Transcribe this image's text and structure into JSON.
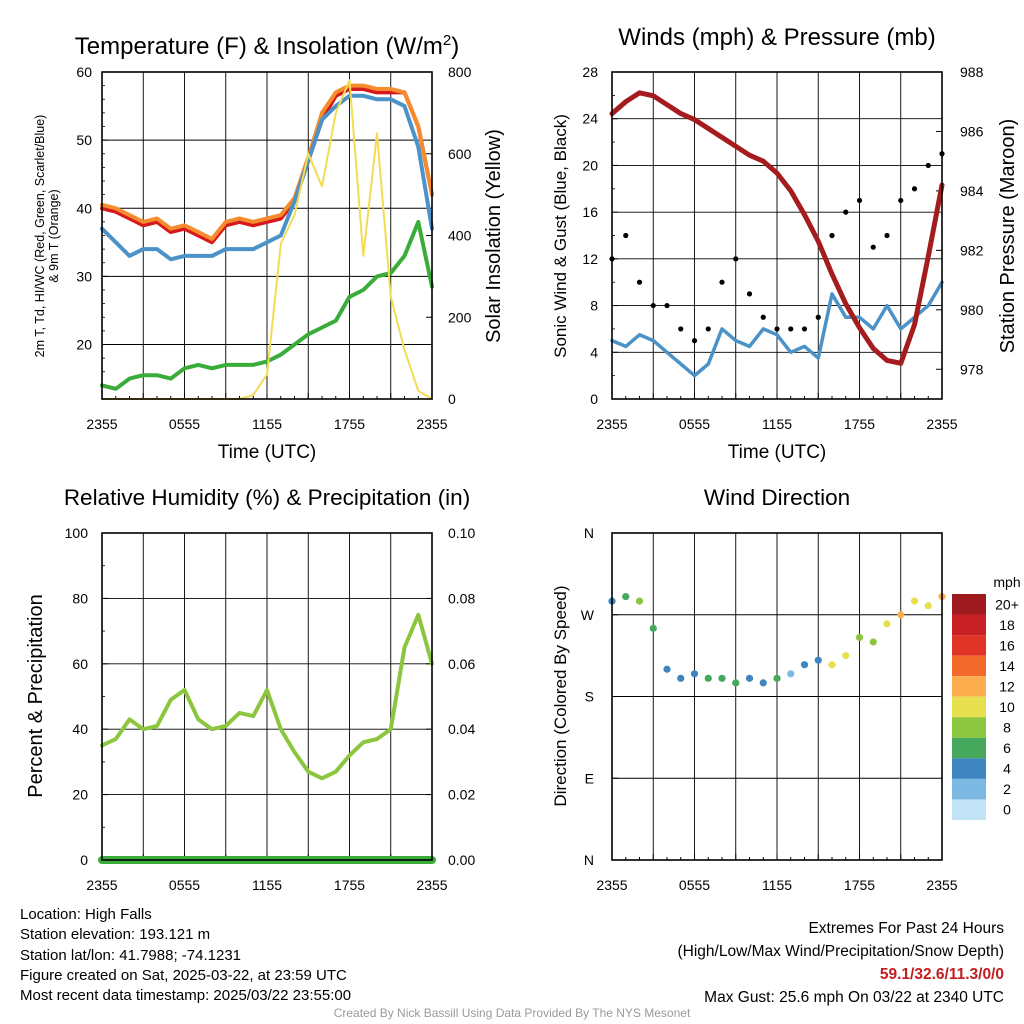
{
  "chart_data": [
    {
      "type": "line",
      "title": "Temperature (F) & Insolation (W/m²)",
      "title_main": "Temperature (F) & Insolation (W/m",
      "title_sup": "2",
      "title_end": ")",
      "xlabel": "Time (UTC)",
      "ylabel_left_1": "2m T, Td, HI/WC (Red, Green, Scarlet/Blue)",
      "ylabel_left_2": "& 9m T (Orange)",
      "ylabel_right": "Solar Insolation (Yellow)",
      "x_ticks": [
        "2355",
        "0555",
        "1155",
        "1755",
        "2355"
      ],
      "ylim": [
        12,
        60
      ],
      "y_ticks": [
        20,
        30,
        40,
        50,
        60
      ],
      "y2lim": [
        0,
        800
      ],
      "y2_ticks": [
        0,
        200,
        400,
        600,
        800
      ],
      "x_hours": [
        0,
        1,
        2,
        3,
        4,
        5,
        6,
        7,
        8,
        9,
        10,
        11,
        12,
        13,
        14,
        15,
        16,
        17,
        18,
        19,
        20,
        21,
        22,
        23,
        24
      ],
      "series": [
        {
          "name": "2m T",
          "color": "#d7191c",
          "axis": "left",
          "values": [
            40,
            39.5,
            38.5,
            37.5,
            38,
            36.5,
            37,
            36,
            35,
            37.5,
            38,
            37.5,
            38,
            38.5,
            41,
            47,
            53,
            56.5,
            57.5,
            57.5,
            57,
            57,
            57,
            52,
            42
          ]
        },
        {
          "name": "9m T",
          "color": "#f58c2e",
          "axis": "left",
          "values": [
            40.5,
            40,
            39,
            38,
            38.5,
            37,
            37.5,
            36.5,
            35.5,
            38,
            38.5,
            38,
            38.5,
            39,
            41.5,
            47.5,
            54,
            57,
            58,
            58,
            57.5,
            57.5,
            57,
            52,
            42
          ]
        },
        {
          "name": "Td",
          "color": "#3aac3a",
          "axis": "left",
          "values": [
            14,
            13.5,
            15,
            15.5,
            15.5,
            15,
            16.5,
            17,
            16.5,
            17,
            17,
            17,
            17.5,
            18.5,
            20,
            21.5,
            22.5,
            23.5,
            27,
            28,
            30,
            30.5,
            33,
            38,
            28.5
          ]
        },
        {
          "name": "HI/WC",
          "color": "#4a92c7",
          "axis": "left",
          "values": [
            37,
            35,
            33,
            34,
            34,
            32.5,
            33,
            33,
            33,
            34,
            34,
            34,
            35,
            36,
            41,
            47,
            53,
            55,
            56.5,
            56.5,
            56,
            56,
            55,
            49,
            37
          ]
        },
        {
          "name": "Solar Insolation",
          "color": "#f2dc54",
          "axis": "right",
          "values": [
            0,
            0,
            0,
            0,
            0,
            0,
            0,
            0,
            0,
            0,
            0,
            10,
            60,
            380,
            450,
            600,
            520,
            700,
            780,
            350,
            650,
            250,
            120,
            20,
            0
          ]
        }
      ]
    },
    {
      "type": "line",
      "title": "Winds (mph) & Pressure (mb)",
      "xlabel": "Time (UTC)",
      "ylabel_left": "Sonic Wind & Gust (Blue, Black)",
      "ylabel_right": "Station Pressure (Maroon)",
      "x_ticks": [
        "2355",
        "0555",
        "1155",
        "1755",
        "2355"
      ],
      "ylim": [
        0,
        28
      ],
      "y_ticks": [
        0,
        4,
        8,
        12,
        16,
        20,
        24,
        28
      ],
      "y2lim": [
        977,
        988
      ],
      "y2_ticks": [
        978,
        980,
        982,
        984,
        986,
        988
      ],
      "x_hours": [
        0,
        1,
        2,
        3,
        4,
        5,
        6,
        7,
        8,
        9,
        10,
        11,
        12,
        13,
        14,
        15,
        16,
        17,
        18,
        19,
        20,
        21,
        22,
        23,
        24
      ],
      "series": [
        {
          "name": "Sonic Wind",
          "color": "#4a92c7",
          "axis": "left",
          "values": [
            5,
            4.5,
            5.5,
            5,
            4,
            3,
            2,
            3,
            6,
            5,
            4.5,
            6,
            5.5,
            4,
            4.5,
            3.5,
            9,
            7,
            7,
            6,
            8,
            6,
            7,
            8,
            10
          ]
        },
        {
          "name": "Gust",
          "color": "#000000",
          "axis": "left",
          "marker": "dots",
          "values": [
            12,
            14,
            10,
            8,
            8,
            6,
            5,
            6,
            10,
            12,
            9,
            7,
            6,
            6,
            6,
            7,
            14,
            16,
            17,
            13,
            14,
            17,
            18,
            20,
            21
          ]
        },
        {
          "name": "Station Pressure",
          "color": "#a51c1f",
          "axis": "right",
          "values": [
            986.6,
            987.0,
            987.3,
            987.2,
            986.9,
            986.6,
            986.4,
            986.1,
            985.8,
            985.5,
            985.2,
            985.0,
            984.6,
            984.0,
            983.2,
            982.3,
            981.2,
            980.2,
            979.4,
            978.7,
            978.3,
            978.2,
            979.5,
            981.8,
            984.2
          ]
        }
      ]
    },
    {
      "type": "line",
      "title": "Relative Humidity (%) & Precipitation (in)",
      "ylabel_left": "Percent & Precipitation",
      "x_ticks": [
        "2355",
        "0555",
        "1155",
        "1755",
        "2355"
      ],
      "ylim": [
        0,
        100
      ],
      "y_ticks": [
        0,
        20,
        40,
        60,
        80,
        100
      ],
      "y2lim": [
        0,
        0.1
      ],
      "y2_ticks": [
        "0.00",
        "0.02",
        "0.04",
        "0.06",
        "0.08",
        "0.10"
      ],
      "x_hours": [
        0,
        1,
        2,
        3,
        4,
        5,
        6,
        7,
        8,
        9,
        10,
        11,
        12,
        13,
        14,
        15,
        16,
        17,
        18,
        19,
        20,
        21,
        22,
        23,
        24
      ],
      "series": [
        {
          "name": "Relative Humidity",
          "color": "#8cc63f",
          "axis": "left",
          "values": [
            35,
            37,
            43,
            40,
            41,
            49,
            52,
            43,
            40,
            41,
            45,
            44,
            52,
            40,
            33,
            27,
            25,
            27,
            32,
            36,
            37,
            40,
            65,
            75,
            60
          ]
        },
        {
          "name": "Precipitation",
          "color": "#3aac3a",
          "axis": "right",
          "values": [
            0,
            0,
            0,
            0,
            0,
            0,
            0,
            0,
            0,
            0,
            0,
            0,
            0,
            0,
            0,
            0,
            0,
            0,
            0,
            0,
            0,
            0,
            0,
            0,
            0
          ]
        }
      ]
    },
    {
      "type": "scatter",
      "title": "Wind Direction",
      "ylabel_left": "Direction (Colored By Speed)",
      "x_ticks": [
        "2355",
        "0555",
        "1155",
        "1755",
        "2355"
      ],
      "y_ticks": [
        "N",
        "E",
        "S",
        "W",
        "N"
      ],
      "ylim": [
        0,
        360
      ],
      "colorbar_title": "mph",
      "colorbar_labels": [
        "20+",
        "18",
        "16",
        "14",
        "12",
        "10",
        "8",
        "6",
        "4",
        "2",
        "0"
      ],
      "colorbar_colors": [
        "#9e1a1e",
        "#c72025",
        "#e03427",
        "#f26a2b",
        "#fcae4f",
        "#e7e04e",
        "#8cc63f",
        "#46a85c",
        "#3f86c1",
        "#7bb8e2",
        "#c2e3f5"
      ],
      "x_hours": [
        0,
        1,
        2,
        3,
        4,
        5,
        6,
        7,
        8,
        9,
        10,
        11,
        12,
        13,
        14,
        15,
        16,
        17,
        18,
        19,
        20,
        21,
        22,
        23,
        24
      ],
      "direction_deg": [
        285,
        290,
        285,
        255,
        210,
        200,
        205,
        200,
        200,
        195,
        200,
        195,
        200,
        205,
        215,
        220,
        215,
        225,
        245,
        240,
        260,
        270,
        285,
        280,
        290
      ],
      "speed_mph": [
        4,
        6,
        7,
        5,
        3,
        3,
        4,
        5,
        6,
        5,
        4,
        4,
        5,
        2,
        3,
        4,
        9,
        10,
        8,
        7,
        9,
        11,
        10,
        10,
        12
      ]
    }
  ],
  "footer": {
    "location": "Location: High Falls",
    "elevation": "Station elevation: 193.121 m",
    "latlon": "Station lat/lon: 41.7988; -74.1231",
    "created": "Figure created on Sat, 2025-03-22, at 23:59 UTC",
    "recent": "Most recent data timestamp: 2025/03/22 23:55:00",
    "extremes_title": "Extremes For Past 24 Hours",
    "extremes_sub": "(High/Low/Max Wind/Precipitation/Snow Depth)",
    "extremes_values": "59.1/32.6/11.3/0/0",
    "max_gust": "Max Gust: 25.6 mph On 03/22 at 2340 UTC",
    "credit": "Created By Nick Bassill Using Data Provided By The NYS Mesonet"
  }
}
